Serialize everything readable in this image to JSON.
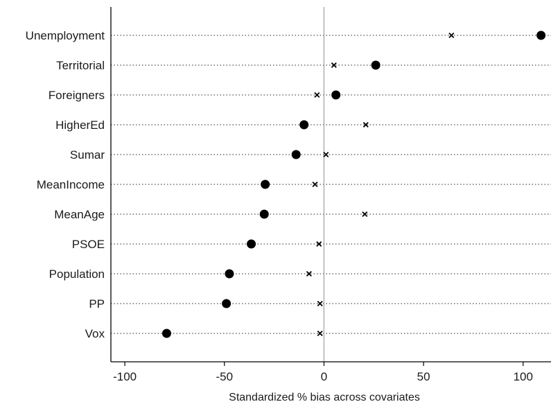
{
  "chart_data": {
    "type": "scatter",
    "title": "",
    "xlabel": "Standardized % bias across covariates",
    "ylabel": "",
    "xlim": [
      -107,
      114
    ],
    "xticks": [
      -100,
      -50,
      0,
      50,
      100
    ],
    "reference_line_x": 0,
    "grid": "dotted horizontal lines per category",
    "legend": "none",
    "categories": [
      "Unemployment",
      "Territorial",
      "Foreigners",
      "HigherEd",
      "Sumar",
      "MeanIncome",
      "MeanAge",
      "PSOE",
      "Population",
      "PP",
      "Vox"
    ],
    "series": [
      {
        "marker": "filled-circle",
        "values": [
          109,
          26,
          6,
          -10,
          -14,
          -29.5,
          -30,
          -36.5,
          -47.5,
          -49,
          -79
        ]
      },
      {
        "marker": "x",
        "values": [
          64,
          5,
          -3.5,
          21,
          1,
          -4.5,
          20.5,
          -2.5,
          -7.5,
          -2,
          -2
        ]
      }
    ]
  },
  "colors": {
    "marker": "#000000",
    "axis": "#000000",
    "reference_line": "#a6a6a6",
    "gridline": "#4d4d4d"
  }
}
